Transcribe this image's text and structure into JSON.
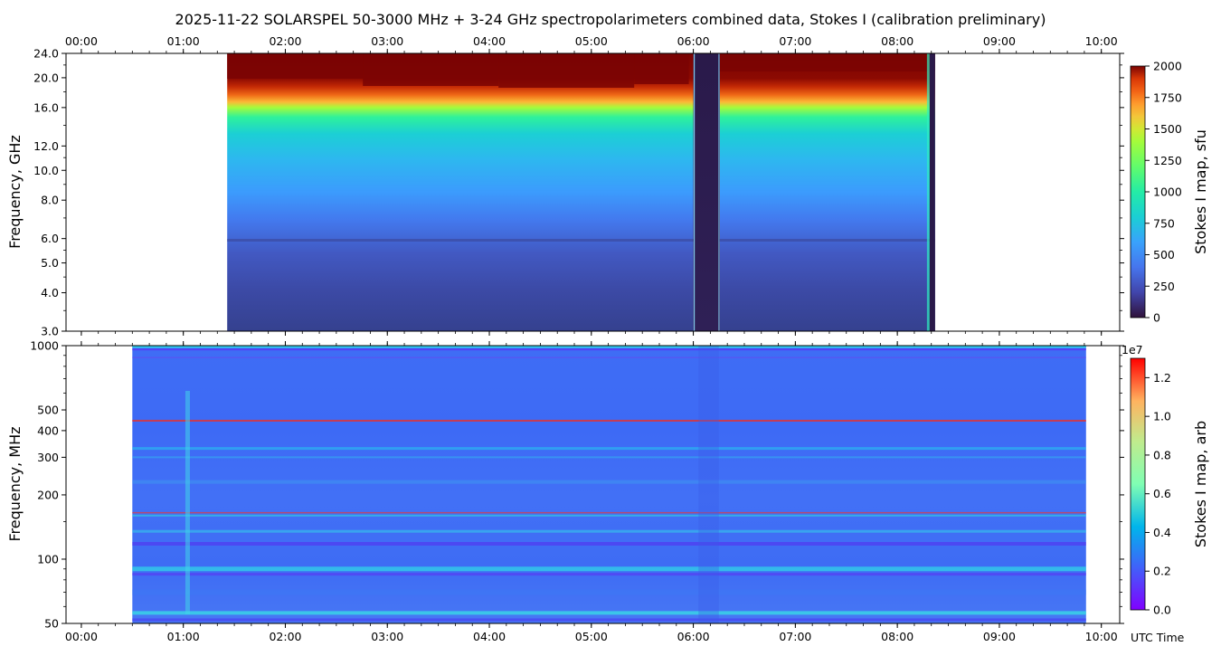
{
  "chart_data": [
    {
      "type": "heatmap",
      "title": "2025-11-22  SOLARSPEL  50-3000 MHz  +  3-24 GHz  spectropolarimeters combined data,  Stokes I  (calibration preliminary)",
      "ylabel": "Frequency, GHz",
      "x_ticks": [
        "00:00",
        "01:00",
        "02:00",
        "03:00",
        "04:00",
        "05:00",
        "06:00",
        "07:00",
        "08:00",
        "09:00",
        "10:00"
      ],
      "xlim_hours": [
        -0.15,
        10.18
      ],
      "y_ticks": [
        "3.0",
        "4.0",
        "5.0",
        "6.0",
        "8.0",
        "10.0",
        "12.0",
        "16.0",
        "20.0",
        "24.0"
      ],
      "y_tick_values": [
        3,
        4,
        5,
        6,
        8,
        10,
        12,
        16,
        20,
        24
      ],
      "ylim": [
        3,
        24
      ],
      "y_scale": "log",
      "data_coverage_hours": [
        1.43,
        8.37
      ],
      "data_gap_hours": [
        6.0,
        6.26
      ],
      "colorbar": {
        "label": "Stokes I map, sfu",
        "ticks": [
          "0",
          "250",
          "500",
          "750",
          "1000",
          "1250",
          "1500",
          "1750",
          "2000"
        ],
        "range": [
          0,
          2000
        ],
        "colormap": "turbo"
      }
    },
    {
      "type": "heatmap",
      "ylabel": "Frequency, MHz",
      "xlabel": "UTC Time",
      "x_ticks": [
        "00:00",
        "01:00",
        "02:00",
        "03:00",
        "04:00",
        "05:00",
        "06:00",
        "07:00",
        "08:00",
        "09:00",
        "10:00"
      ],
      "xlim_hours": [
        -0.15,
        10.18
      ],
      "y_ticks": [
        "50",
        "100",
        "200",
        "300",
        "400",
        "500",
        "1000"
      ],
      "y_tick_values": [
        50,
        100,
        200,
        300,
        400,
        500,
        1000
      ],
      "ylim": [
        50,
        1000
      ],
      "y_scale": "log",
      "data_coverage_hours": [
        0.5,
        9.85
      ],
      "colorbar": {
        "label": "Stokes I map, arb",
        "offset": "1e7",
        "ticks": [
          "0.0",
          "0.2",
          "0.4",
          "0.6",
          "0.8",
          "1.0",
          "1.2"
        ],
        "range": [
          0,
          1.3
        ],
        "colormap": "rainbow"
      }
    }
  ]
}
